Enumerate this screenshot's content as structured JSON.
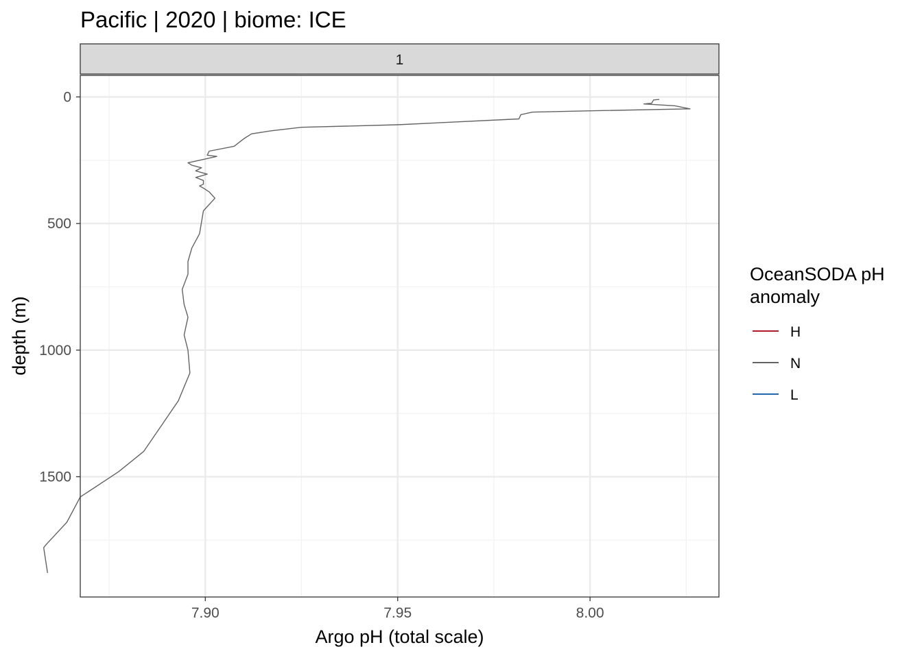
{
  "chart_data": {
    "type": "line",
    "title": "Pacific | 2020 | biome: ICE",
    "facet_label": "1",
    "xlabel": "Argo pH (total scale)",
    "ylabel": "depth (m)",
    "xlim": [
      7.8675,
      8.0335
    ],
    "ylim": [
      -85,
      1975
    ],
    "y_reversed": true,
    "x_ticks": [
      7.9,
      7.95,
      8.0
    ],
    "x_tick_labels": [
      "7.90",
      "7.95",
      "8.00"
    ],
    "y_ticks": [
      0,
      500,
      1000,
      1500
    ],
    "y_tick_labels": [
      "0",
      "500",
      "1000",
      "1500"
    ],
    "grid": true,
    "legend": {
      "title": "OceanSODA pH anomaly",
      "position": "right",
      "entries": [
        {
          "label": "H",
          "color": "#b2182b"
        },
        {
          "label": "N",
          "color": "#636363"
        },
        {
          "label": "L",
          "color": "#2166ac"
        }
      ]
    },
    "series": [
      {
        "name": "N",
        "color": "#636363",
        "points": [
          [
            8.018,
            10
          ],
          [
            8.0165,
            12
          ],
          [
            8.016,
            25
          ],
          [
            8.014,
            28
          ],
          [
            8.022,
            35
          ],
          [
            8.026,
            47
          ],
          [
            8.0,
            55
          ],
          [
            7.985,
            60
          ],
          [
            7.982,
            70
          ],
          [
            7.9815,
            87
          ],
          [
            7.95,
            110
          ],
          [
            7.925,
            120
          ],
          [
            7.917,
            134
          ],
          [
            7.912,
            146
          ],
          [
            7.91,
            165
          ],
          [
            7.9075,
            195
          ],
          [
            7.901,
            214
          ],
          [
            7.9005,
            230
          ],
          [
            7.903,
            235
          ],
          [
            7.8985,
            250
          ],
          [
            7.8955,
            260
          ],
          [
            7.8965,
            270
          ],
          [
            7.899,
            280
          ],
          [
            7.8975,
            292
          ],
          [
            7.9005,
            305
          ],
          [
            7.8975,
            318
          ],
          [
            7.8995,
            330
          ],
          [
            7.8995,
            345
          ],
          [
            7.8985,
            352
          ],
          [
            7.8995,
            360
          ],
          [
            7.901,
            375
          ],
          [
            7.9025,
            400
          ],
          [
            7.8995,
            450
          ],
          [
            7.8985,
            540
          ],
          [
            7.8965,
            597
          ],
          [
            7.8955,
            650
          ],
          [
            7.8955,
            700
          ],
          [
            7.894,
            760
          ],
          [
            7.8945,
            820
          ],
          [
            7.8955,
            870
          ],
          [
            7.8945,
            940
          ],
          [
            7.8955,
            1000
          ],
          [
            7.896,
            1090
          ],
          [
            7.893,
            1200
          ],
          [
            7.8885,
            1300
          ],
          [
            7.884,
            1400
          ],
          [
            7.8775,
            1480
          ],
          [
            7.8675,
            1580
          ],
          [
            7.864,
            1680
          ],
          [
            7.8585,
            1770
          ],
          [
            7.858,
            1780
          ],
          [
            7.8585,
            1830
          ],
          [
            7.859,
            1880
          ]
        ]
      }
    ]
  }
}
